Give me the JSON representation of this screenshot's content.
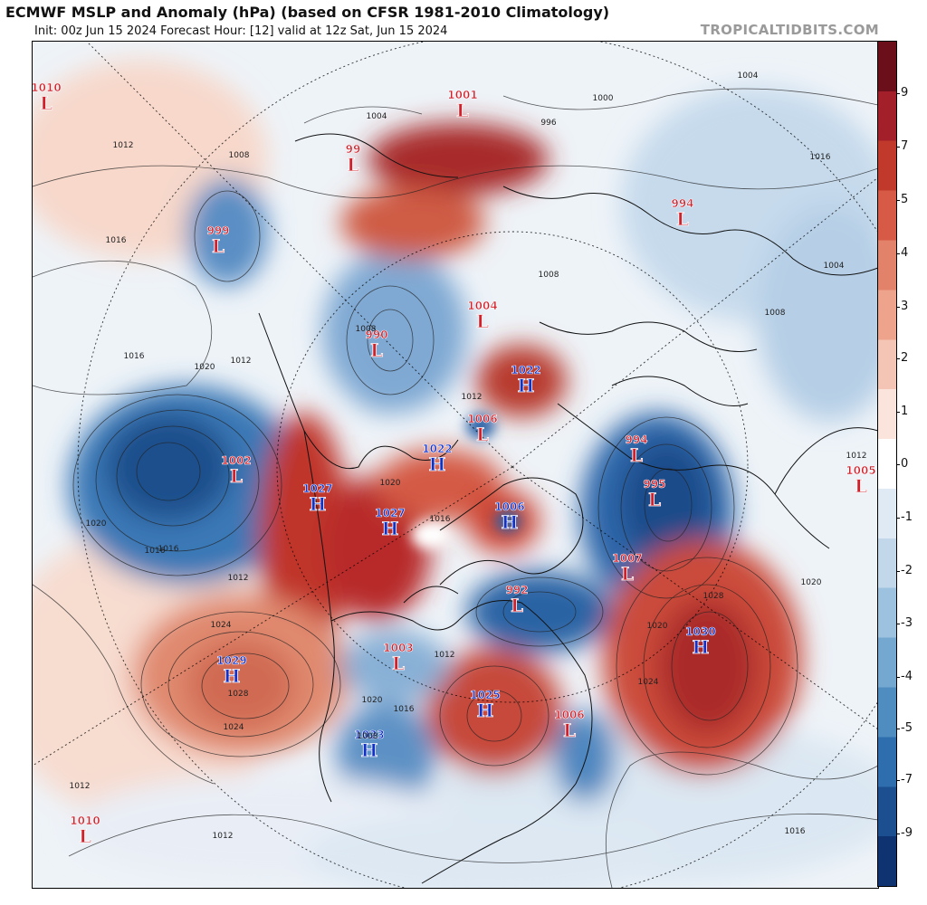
{
  "header": {
    "title": "ECMWF MSLP and Anomaly (hPa) (based on CFSR 1981-2010 Climatology)",
    "subtitle": "Init: 00z Jun 15 2024   Forecast Hour: [12]   valid at 12z Sat, Jun 15 2024",
    "watermark": "TROPICALTIDBITS.COM"
  },
  "colorbar": {
    "ticks": [
      "9",
      "7",
      "5",
      "4",
      "3",
      "2",
      "1",
      "0",
      "-1",
      "-2",
      "-3",
      "-4",
      "-5",
      "-7",
      "-9"
    ],
    "colors_top_to_bottom": [
      "#6b0f1a",
      "#a3202a",
      "#c0392b",
      "#d65a45",
      "#e2826a",
      "#eea38d",
      "#f4c4b4",
      "#fbe4dc",
      "#ffffff",
      "#dfeaf4",
      "#c2d8ea",
      "#9cc2df",
      "#75a8d0",
      "#4f8cc0",
      "#2f6eae",
      "#1b4f8f",
      "#0f3370"
    ]
  },
  "pressure_centers": [
    {
      "type": "L",
      "value": "1010",
      "color": "#d0202a"
    },
    {
      "type": "L",
      "value": "1001",
      "color": "#d0202a"
    },
    {
      "type": "L",
      "value": "99",
      "color": "#d0202a"
    },
    {
      "type": "L",
      "value": "994",
      "color": "#d0202a"
    },
    {
      "type": "L",
      "value": "999",
      "color": "#d0202a"
    },
    {
      "type": "L",
      "value": "1004",
      "color": "#d0202a"
    },
    {
      "type": "L",
      "value": "990",
      "color": "#d0202a"
    },
    {
      "type": "H",
      "value": "1022",
      "color": "#1030c8"
    },
    {
      "type": "L",
      "value": "1006",
      "color": "#d0202a"
    },
    {
      "type": "H",
      "value": "1022",
      "color": "#1030c8"
    },
    {
      "type": "L",
      "value": "994",
      "color": "#d0202a"
    },
    {
      "type": "L",
      "value": "1002",
      "color": "#d0202a"
    },
    {
      "type": "H",
      "value": "1027",
      "color": "#1030c8"
    },
    {
      "type": "H",
      "value": "1027",
      "color": "#1030c8"
    },
    {
      "type": "H",
      "value": "1006",
      "color": "#1030c8"
    },
    {
      "type": "L",
      "value": "995",
      "color": "#d0202a"
    },
    {
      "type": "L",
      "value": "1005",
      "color": "#d0202a"
    },
    {
      "type": "L",
      "value": "1007",
      "color": "#d0202a"
    },
    {
      "type": "L",
      "value": "992",
      "color": "#d0202a"
    },
    {
      "type": "H",
      "value": "1030",
      "color": "#1030c8"
    },
    {
      "type": "H",
      "value": "1029",
      "color": "#1030c8"
    },
    {
      "type": "L",
      "value": "1003",
      "color": "#d0202a"
    },
    {
      "type": "H",
      "value": "1025",
      "color": "#1030c8"
    },
    {
      "type": "L",
      "value": "1006",
      "color": "#d0202a"
    },
    {
      "type": "H",
      "value": "1023",
      "color": "#1030c8"
    },
    {
      "type": "L",
      "value": "1010",
      "color": "#d0202a"
    }
  ],
  "isobar_labels": [
    "1012",
    "1008",
    "1016",
    "1012",
    "1016",
    "1020",
    "1016",
    "1024",
    "1028",
    "1024",
    "1012",
    "1020",
    "1016",
    "1012",
    "1008",
    "1004",
    "1008",
    "1020",
    "1016",
    "1012",
    "1020",
    "1024",
    "1028",
    "1020",
    "1016",
    "1012",
    "1016",
    "1012",
    "1008",
    "1004",
    "996",
    "1000",
    "1004",
    "1008",
    "1012",
    "1016",
    "1020"
  ],
  "colors": {
    "low_label": "#d0202a",
    "high_label": "#1030c8"
  }
}
